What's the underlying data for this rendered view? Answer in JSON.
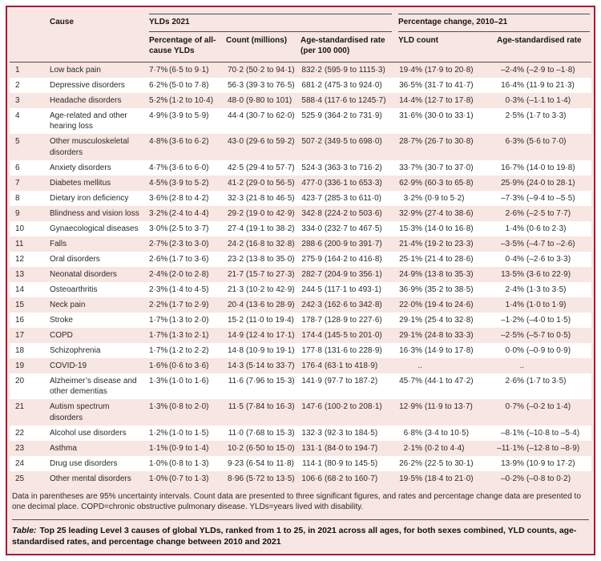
{
  "colors": {
    "crimson": "#A6193C",
    "pink": "#F8E6E2",
    "row_white": "#FFFFFF",
    "rule_dark": "#4D4D4D",
    "text": "#2A2A2A",
    "header_text": "#151515"
  },
  "table": {
    "header": {
      "cause": "Cause",
      "group_ylds": "YLDs 2021",
      "group_change": "Percentage change, 2010–21",
      "sub": [
        "Percentage of all-cause YLDs",
        "Count (millions)",
        "Age-standardised rate (per 100 000)",
        "YLD count",
        "Age-standardised rate"
      ]
    },
    "rows": [
      {
        "rank": "1",
        "cause": "Low back pain",
        "pct": "7·7% (6·5 to 9·1)",
        "count": "70·2 (50·2 to 94·1)",
        "rate": "832·2 (595·9 to 1115·3)",
        "yld_change": "19·4% (17·9 to 20·8)",
        "asr_change": "–2·4% (–2·9 to –1·8)"
      },
      {
        "rank": "2",
        "cause": "Depressive disorders",
        "pct": "6·2% (5·0 to 7·8)",
        "count": "56·3 (39·3 to 76·5)",
        "rate": "681·2 (475·3 to 924·0)",
        "yld_change": "36·5% (31·7 to 41·7)",
        "asr_change": "16·4% (11·9 to 21·3)"
      },
      {
        "rank": "3",
        "cause": "Headache disorders",
        "pct": "5·2% (1·2 to 10·4)",
        "count": "48·0 (9·80 to 101)",
        "rate": "588·4 (117·6 to 1245·7)",
        "yld_change": "14·4% (12·7 to 17·8)",
        "asr_change": "0·3% (–1·1 to 1·4)"
      },
      {
        "rank": "4",
        "cause": "Age-related and other hearing loss",
        "pct": "4·9% (3·9 to 5·9)",
        "count": "44·4 (30·7 to 62·0)",
        "rate": "525·9 (364·2 to 731·9)",
        "yld_change": "31·6% (30·0 to 33·1)",
        "asr_change": "2·5% (1·7 to 3·3)"
      },
      {
        "rank": "5",
        "cause": "Other musculoskeletal disorders",
        "pct": "4·8% (3·6 to 6·2)",
        "count": "43·0 (29·6 to 59·2)",
        "rate": "507·2 (349·5 to 698·0)",
        "yld_change": "28·7% (26·7 to 30·8)",
        "asr_change": "6·3% (5·6 to 7·0)"
      },
      {
        "rank": "6",
        "cause": "Anxiety disorders",
        "pct": "4·7% (3·6 to 6·0)",
        "count": "42·5 (29·4 to 57·7)",
        "rate": "524·3 (363·3 to 716·2)",
        "yld_change": "33·7% (30·7 to 37·0)",
        "asr_change": "16·7% (14·0 to 19·8)"
      },
      {
        "rank": "7",
        "cause": "Diabetes mellitus",
        "pct": "4·5% (3·9 to 5·2)",
        "count": "41·2 (29·0 to 56·5)",
        "rate": "477·0 (336·1 to 653·3)",
        "yld_change": "62·9% (60·3 to 65·8)",
        "asr_change": "25·9% (24·0 to 28·1)"
      },
      {
        "rank": "8",
        "cause": "Dietary iron deficiency",
        "pct": "3·6% (2·8 to 4·2)",
        "count": "32·3 (21·8 to 46·5)",
        "rate": "423·7 (285·3 to 611·0)",
        "yld_change": "3·2% (0·9 to 5·2)",
        "asr_change": "–7·3% (–9·4 to –5·5)"
      },
      {
        "rank": "9",
        "cause": "Blindness and vision loss",
        "pct": "3·2% (2·4 to 4·4)",
        "count": "29·2 (19·0 to 42·9)",
        "rate": "342·8 (224·2 to 503·6)",
        "yld_change": "32·9% (27·4 to 38·6)",
        "asr_change": "2·6% (–2·5 to 7·7)"
      },
      {
        "rank": "10",
        "cause": "Gynaecological diseases",
        "pct": "3·0% (2·5 to 3·7)",
        "count": "27·4 (19·1 to 38·2)",
        "rate": "334·0 (232·7 to 467·5)",
        "yld_change": "15·3% (14·0 to 16·8)",
        "asr_change": "1·4% (0·6 to 2·3)"
      },
      {
        "rank": "11",
        "cause": "Falls",
        "pct": "2·7% (2·3 to 3·0)",
        "count": "24·2 (16·8 to 32·8)",
        "rate": "288·6 (200·9 to 391·7)",
        "yld_change": "21·4% (19·2 to 23·3)",
        "asr_change": "–3·5% (–4·7 to –2·6)"
      },
      {
        "rank": "12",
        "cause": "Oral disorders",
        "pct": "2·6% (1·7 to 3·6)",
        "count": "23·2 (13·8 to 35·0)",
        "rate": "275·9 (164·2 to 416·8)",
        "yld_change": "25·1% (21·4 to 28·6)",
        "asr_change": "0·4% (–2·6 to 3·3)"
      },
      {
        "rank": "13",
        "cause": "Neonatal disorders",
        "pct": "2·4% (2·0 to 2·8)",
        "count": "21·7 (15·7 to 27·3)",
        "rate": "282·7 (204·9 to 356·1)",
        "yld_change": "24·9% (13·8 to 35·3)",
        "asr_change": "13·5% (3·6 to 22·9)"
      },
      {
        "rank": "14",
        "cause": "Osteoarthritis",
        "pct": "2·3% (1·4 to 4·5)",
        "count": "21·3 (10·2 to 42·9)",
        "rate": "244·5 (117·1 to 493·1)",
        "yld_change": "36·9% (35·2 to 38·5)",
        "asr_change": "2·4% (1·3 to 3·5)"
      },
      {
        "rank": "15",
        "cause": "Neck pain",
        "pct": "2·2% (1·7 to 2·9)",
        "count": "20·4 (13·6 to 28·9)",
        "rate": "242·3 (162·6 to 342·8)",
        "yld_change": "22·0% (19·4 to 24·6)",
        "asr_change": "1·4% (1·0 to 1·9)"
      },
      {
        "rank": "16",
        "cause": "Stroke",
        "pct": "1·7% (1·3 to 2·0)",
        "count": "15·2 (11·0 to 19·4)",
        "rate": "178·7 (128·9 to 227·6)",
        "yld_change": "29·1% (25·4 to 32·8)",
        "asr_change": "–1·2% (–4·0 to 1·5)"
      },
      {
        "rank": "17",
        "cause": "COPD",
        "pct": "1·7% (1·3 to 2·1)",
        "count": "14·9 (12·4 to 17·1)",
        "rate": "174·4 (145·5 to 201·0)",
        "yld_change": "29·1% (24·8 to 33·3)",
        "asr_change": "–2·5% (–5·7 to 0·5)"
      },
      {
        "rank": "18",
        "cause": "Schizophrenia",
        "pct": "1·7% (1·2 to 2·2)",
        "count": "14·8 (10·9 to 19·1)",
        "rate": "177·8 (131·6 to 228·9)",
        "yld_change": "16·3% (14·9 to 17·8)",
        "asr_change": "0·0% (–0·9 to 0·9)"
      },
      {
        "rank": "19",
        "cause": "COVID-19",
        "pct": "1·6% (0·6 to 3·6)",
        "count": "14·3 (5·14 to 33·7)",
        "rate": "176·4 (63·1 to 418·9)",
        "yld_change": "..",
        "asr_change": ".."
      },
      {
        "rank": "20",
        "cause": "Alzheimer’s disease and other dementias",
        "pct": "1·3% (1·0 to 1·6)",
        "count": "11·6 (7·96 to 15·3)",
        "rate": "141·9 (97·7 to 187·2)",
        "yld_change": "45·7% (44·1 to 47·2)",
        "asr_change": "2·6% (1·7 to 3·5)"
      },
      {
        "rank": "21",
        "cause": "Autism spectrum disorders",
        "pct": "1·3% (0·8 to 2·0)",
        "count": "11·5 (7·84 to 16·3)",
        "rate": "147·6 (100·2 to 208·1)",
        "yld_change": "12·9% (11·9 to 13·7)",
        "asr_change": "0·7% (–0·2 to 1·4)"
      },
      {
        "rank": "22",
        "cause": "Alcohol use disorders",
        "pct": "1·2% (1·0 to 1·5)",
        "count": "11·0 (7·68 to 15·3)",
        "rate": "132·3 (92·3 to 184·5)",
        "yld_change": "6·8% (3·4 to 10·5)",
        "asr_change": "–8·1% (–10·8 to –5·4)"
      },
      {
        "rank": "23",
        "cause": "Asthma",
        "pct": "1·1% (0·9 to 1·4)",
        "count": "10·2 (6·50 to 15·0)",
        "rate": "131·1 (84·0 to 194·7)",
        "yld_change": "2·1% (0·2 to 4·4)",
        "asr_change": "–11·1% (–12·8 to –8·9)"
      },
      {
        "rank": "24",
        "cause": "Drug use disorders",
        "pct": "1·0% (0·8 to 1·3)",
        "count": "9·23 (6·54 to 11·8)",
        "rate": "114·1 (80·9 to 145·5)",
        "yld_change": "26·2% (22·5 to 30·1)",
        "asr_change": "13·9% (10·9 to 17·2)"
      },
      {
        "rank": "25",
        "cause": "Other mental disorders",
        "pct": "1·0% (0·7 to 1·3)",
        "count": "8·96 (5·72 to 13·5)",
        "rate": "106·6 (68·2 to 160·7)",
        "yld_change": "19·5% (18·4 to 21·0)",
        "asr_change": "–0·2% (–0·8 to 0·2)"
      }
    ],
    "footnote": "Data in parentheses are 95% uncertainty intervals. Count data are presented to three significant figures, and rates and percentage change data are presented to one decimal place. COPD=chronic obstructive pulmonary disease. YLDs=years lived with disability.",
    "caption_label": "Table:",
    "caption_text": "Top 25 leading Level 3 causes of global YLDs, ranked from 1 to 25, in 2021 across all ages, for both sexes combined, YLD counts, age-standardised rates, and percentage change between 2010 and 2021"
  }
}
